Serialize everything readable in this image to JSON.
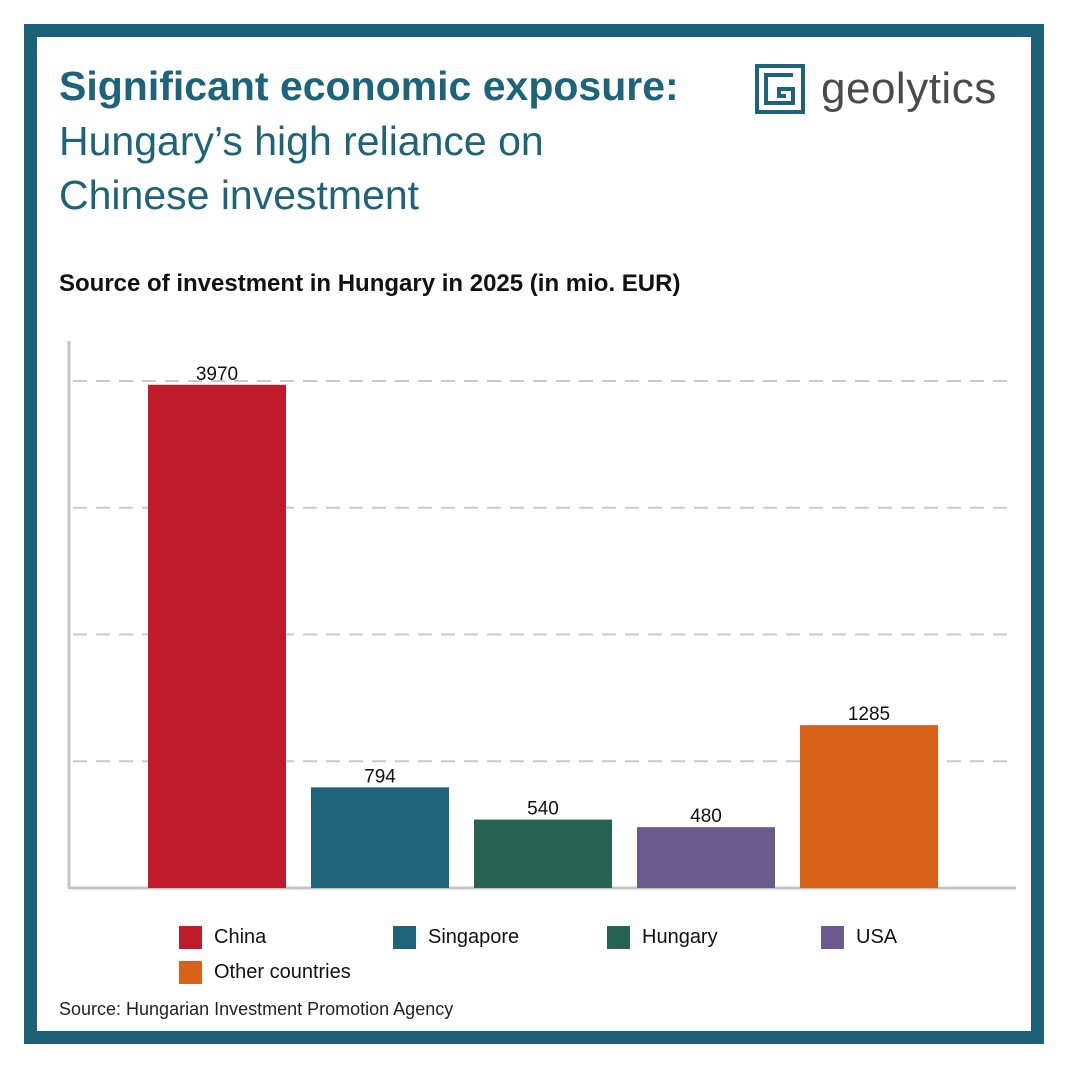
{
  "header": {
    "title_bold": "Significant economic exposure:",
    "title_light": "Hungary’s high reliance on Chinese investment"
  },
  "brand": {
    "name": "geolytics",
    "logo_icon": "geolytics-g-square-icon",
    "color": "#1d6379"
  },
  "chart_data": {
    "type": "bar",
    "title": "Source of investment in Hungary in 2025 (in mio. EUR)",
    "categories": [
      "China",
      "Singapore",
      "Hungary",
      "USA",
      "Other countries"
    ],
    "values": [
      3970,
      794,
      540,
      480,
      1285
    ],
    "colors": [
      "#c01b2a",
      "#1f637a",
      "#266352",
      "#6a5a8d",
      "#d86217"
    ],
    "ylim": [
      0,
      4000
    ],
    "yticks": [
      0,
      1000,
      2000,
      3000,
      4000
    ],
    "grid": true,
    "data_labels": true,
    "legend_position": "bottom"
  },
  "footer": {
    "source": "Source: Hungarian Investment Promotion Agency"
  }
}
